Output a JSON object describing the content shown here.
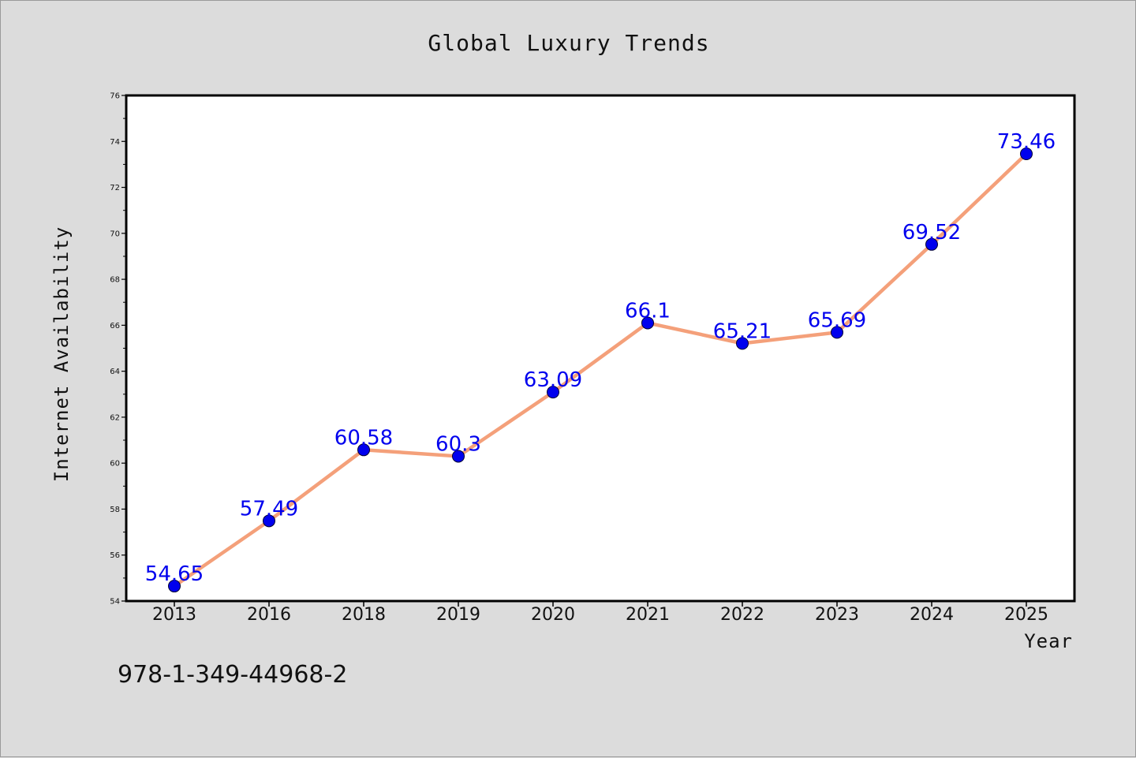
{
  "chart_data": {
    "type": "line",
    "title": "Global Luxury Trends",
    "xlabel": "Year",
    "ylabel": "Internet Availability",
    "categories": [
      "2013",
      "2016",
      "2018",
      "2019",
      "2020",
      "2021",
      "2022",
      "2023",
      "2024",
      "2025"
    ],
    "series": [
      {
        "values": [
          54.65,
          57.49,
          60.58,
          60.3,
          63.09,
          66.1,
          65.21,
          65.69,
          69.52,
          73.46
        ],
        "labels": [
          "54.65",
          "57.49",
          "60.58",
          "60.3",
          "63.09",
          "66.1",
          "65.21",
          "65.69",
          "69.52",
          "73.46"
        ]
      }
    ],
    "ylim": [
      54,
      76
    ],
    "yticks": [
      54,
      56,
      58,
      60,
      62,
      64,
      66,
      68,
      70,
      72,
      74,
      76
    ],
    "grid": false,
    "legend": "none",
    "colors": {
      "line": "#f4a07a",
      "marker": "#0000ee",
      "data_label": "#0000ee",
      "background": "#dcdcdc",
      "plot_background": "#ffffff"
    }
  },
  "footer": {
    "isbn": "978-1-349-44968-2"
  }
}
